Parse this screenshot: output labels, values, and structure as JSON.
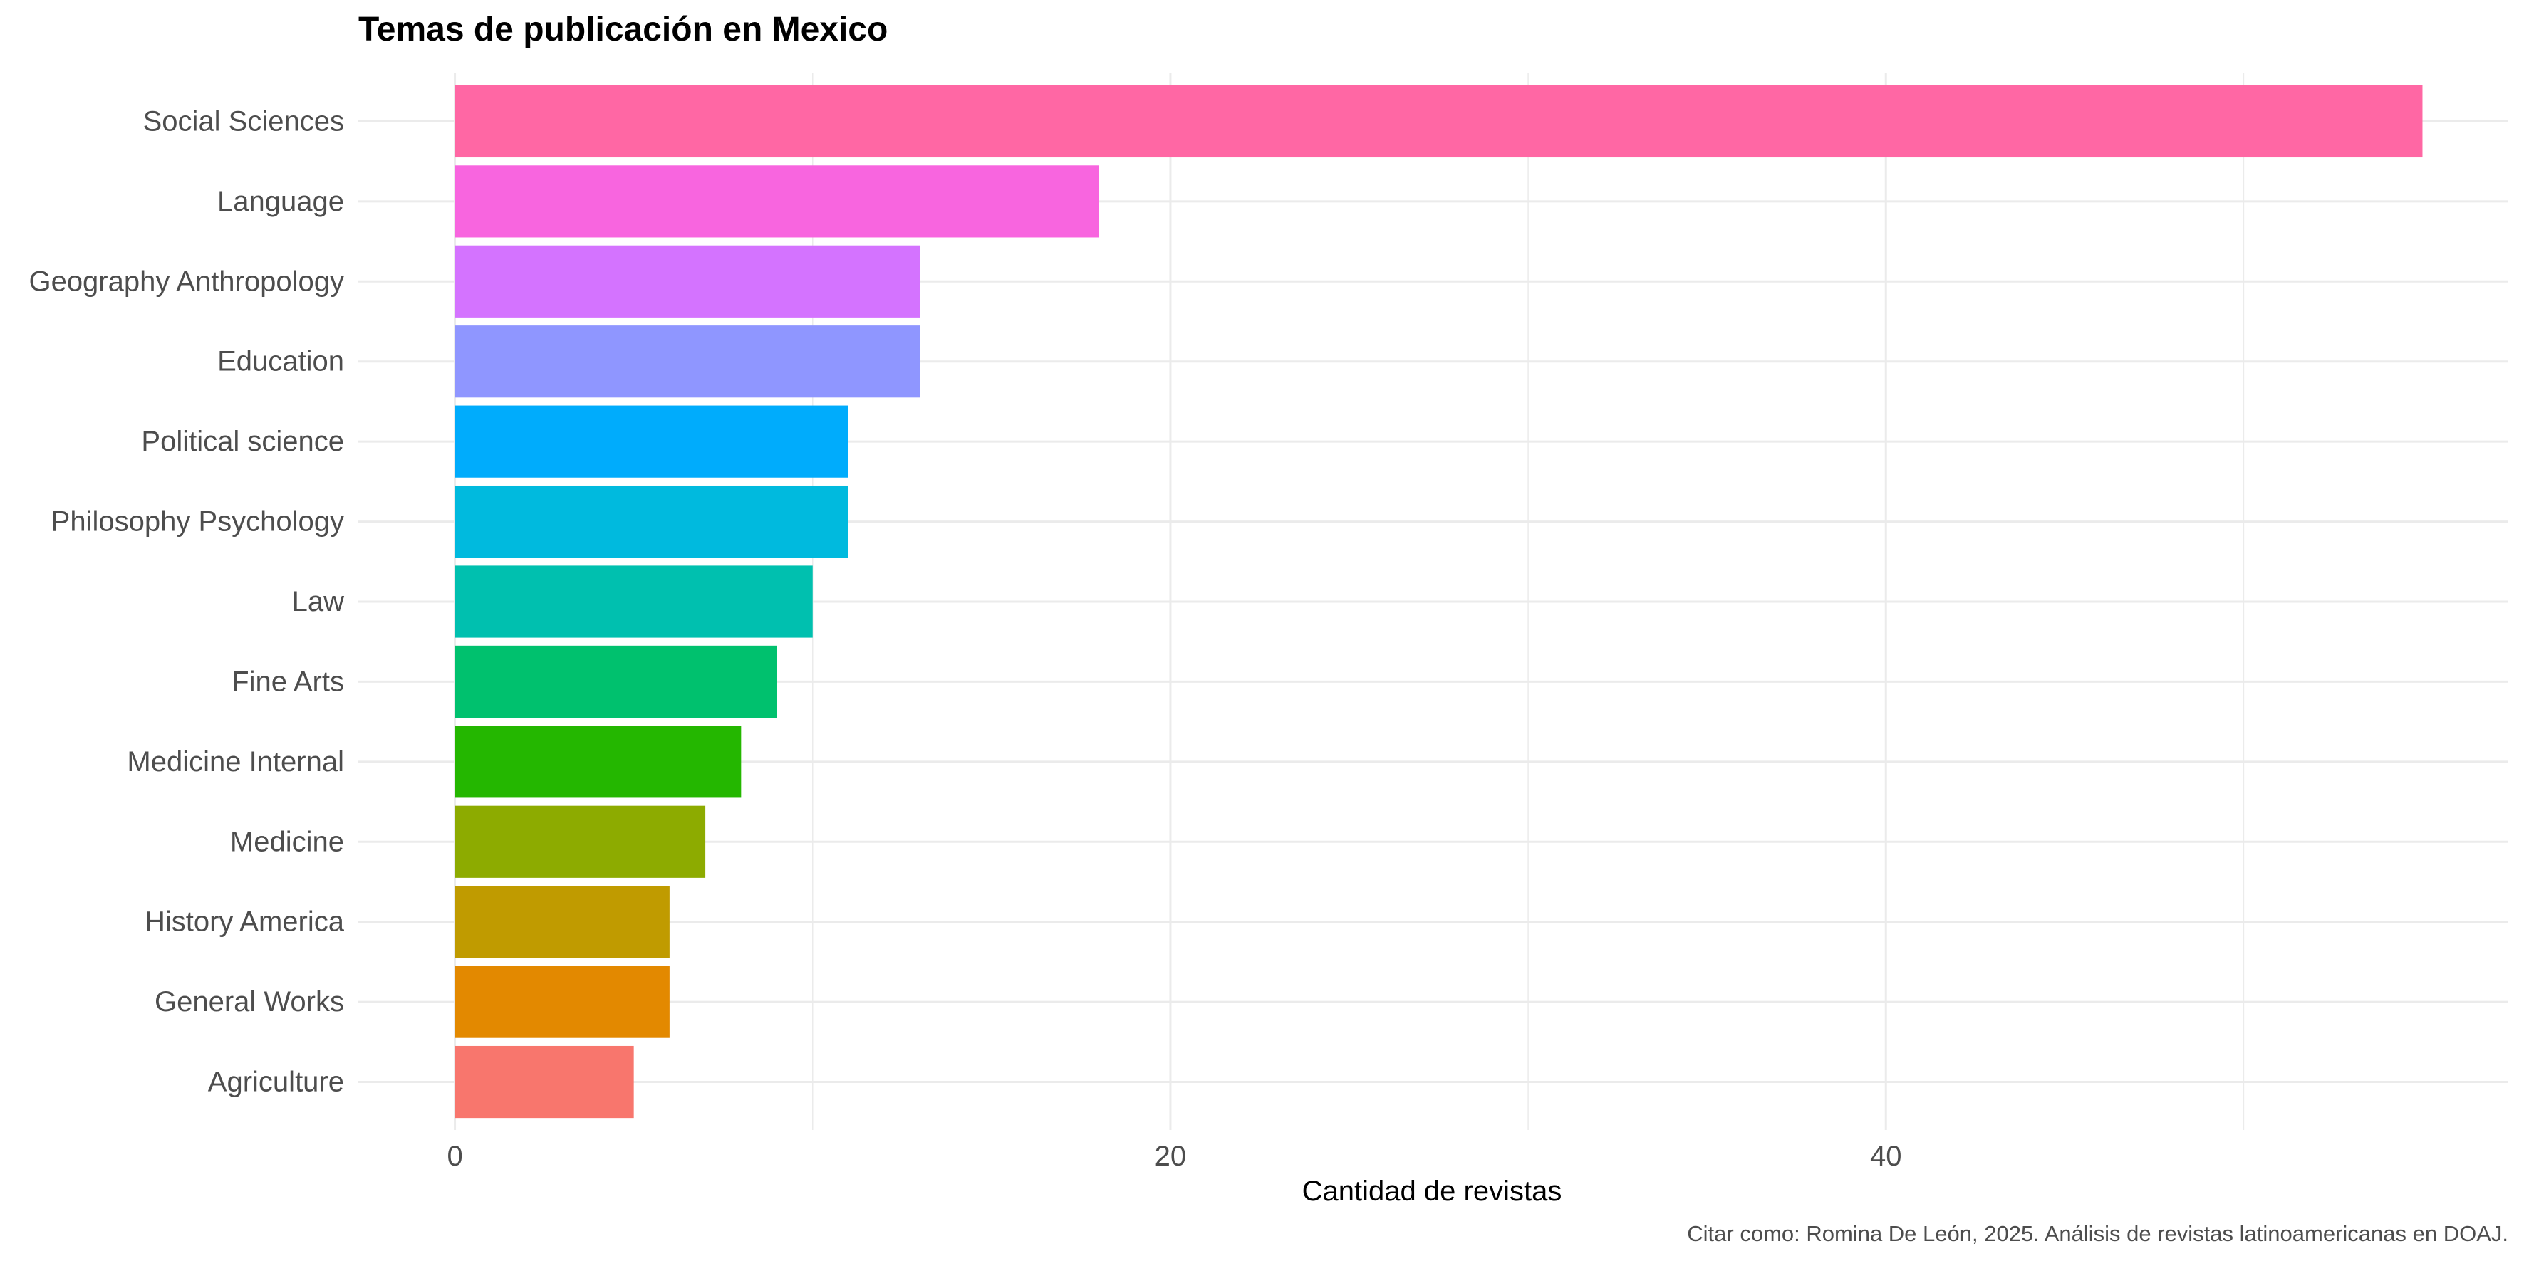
{
  "chart_data": {
    "type": "bar",
    "orientation": "horizontal",
    "title": "Temas de publicación en Mexico",
    "xlabel": "Cantidad de revistas",
    "ylabel": "",
    "caption": "Citar como: Romina De León, 2025. Análisis de revistas latinoamericanas en DOAJ.",
    "xlim": [
      -2.7,
      57.4
    ],
    "x_ticks": [
      0,
      20,
      40
    ],
    "x_tick_labels": [
      "0",
      "20",
      "40"
    ],
    "grid": true,
    "legend": "none",
    "categories": [
      "Social Sciences",
      "Language",
      "Geography Anthropology",
      "Education",
      "Political science",
      "Philosophy Psychology",
      "Law",
      "Fine Arts",
      "Medicine Internal",
      "Medicine",
      "History America",
      "General Works",
      "Agriculture"
    ],
    "values": [
      55,
      18,
      13,
      13,
      11,
      11,
      10,
      9,
      8,
      7,
      6,
      6,
      5
    ],
    "colors": [
      "#FF67A4",
      "#F865DF",
      "#D473FF",
      "#8F96FF",
      "#00ACFC",
      "#00BADE",
      "#00C0AF",
      "#00C16E",
      "#24B700",
      "#8DAB00",
      "#C09B00",
      "#E38900",
      "#F8766D"
    ]
  }
}
